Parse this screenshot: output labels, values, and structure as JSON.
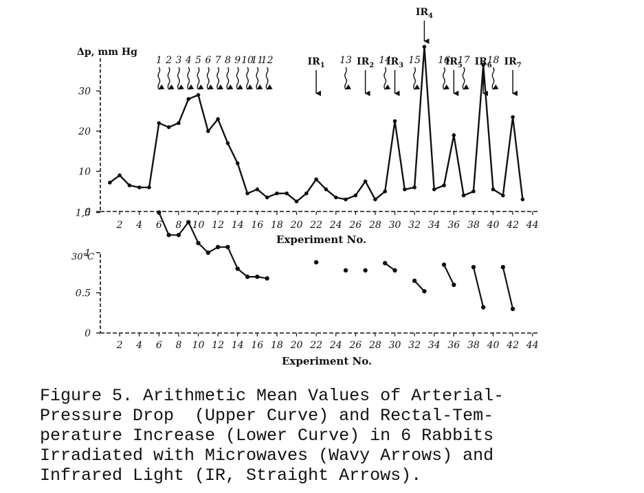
{
  "chart_data": [
    {
      "type": "line",
      "ylabel": "Δp, mm Hg",
      "xlabel": "Experiment No.",
      "xlim": [
        0,
        44
      ],
      "ylim": [
        0,
        35
      ],
      "x_ticks": [
        "2",
        "4",
        "6",
        "8",
        "10",
        "12",
        "14",
        "16",
        "18",
        "20",
        "22",
        "24",
        "26",
        "28",
        "30",
        "32",
        "34",
        "36",
        "38",
        "40",
        "42",
        "44"
      ],
      "y_ticks": [
        "0",
        "10",
        "20",
        "30"
      ],
      "series": [
        {
          "x": [
            1,
            2,
            3,
            4,
            5,
            6,
            7,
            8,
            9,
            10,
            11,
            12,
            13,
            14,
            15,
            16,
            17,
            18,
            19,
            20,
            21,
            22,
            23,
            24,
            25,
            26,
            27,
            28,
            29,
            30,
            31,
            32,
            33,
            34,
            35,
            36,
            37,
            38,
            39,
            40,
            41,
            42,
            43
          ],
          "values": [
            7.2,
            9,
            6.5,
            6,
            6,
            22,
            21,
            22,
            28,
            29,
            20,
            23,
            17,
            12,
            4.5,
            5.5,
            3.5,
            4.5,
            4.5,
            2.5,
            4.5,
            8,
            5.5,
            3.5,
            3,
            4,
            7.5,
            3,
            5,
            22.5,
            5.5,
            6,
            41,
            5.5,
            6.5,
            19,
            4,
            5,
            36.5,
            5.5,
            4,
            23.5,
            3
          ]
        }
      ],
      "annotations": {
        "microwave_labels": [
          "1",
          "2",
          "3",
          "4",
          "5",
          "6",
          "7",
          "8",
          "9",
          "10",
          "11",
          "12",
          "13",
          "14",
          "15",
          "16",
          "17",
          "18"
        ],
        "microwave_x": [
          6,
          7,
          8,
          9,
          10,
          11,
          12,
          13,
          14,
          15,
          16,
          17,
          25,
          29,
          32,
          35,
          37,
          40
        ],
        "ir_labels": [
          "IR",
          "IR",
          "IR",
          "IR",
          "IR",
          "IR",
          "IR"
        ],
        "ir_subscripts": [
          "1",
          "2",
          "3",
          "4",
          "5",
          "6",
          "7"
        ],
        "ir_x": [
          22,
          27,
          30,
          33,
          36,
          39,
          42
        ]
      }
    },
    {
      "type": "scatter",
      "ylabel": "°C",
      "xlabel": "Experiment No.",
      "xlim": [
        0,
        44
      ],
      "ylim": [
        0,
        1.75
      ],
      "x_ticks": [
        "2",
        "4",
        "6",
        "8",
        "10",
        "12",
        "14",
        "16",
        "18",
        "20",
        "22",
        "24",
        "26",
        "28",
        "30",
        "32",
        "34",
        "36",
        "38",
        "40",
        "42",
        "44"
      ],
      "y_ticks": [
        "0",
        "0.5",
        "1",
        "1,5"
      ],
      "y_top_label": "30°C",
      "segments": [
        {
          "x": [
            6,
            7,
            8,
            9,
            10,
            11,
            12,
            13,
            14,
            15,
            16,
            17
          ],
          "values": [
            1.5,
            1.22,
            1.22,
            1.38,
            1.12,
            1.0,
            1.07,
            1.07,
            0.8,
            0.7,
            0.7,
            0.68
          ]
        },
        {
          "x": [
            22
          ],
          "values": [
            0.88
          ]
        },
        {
          "x": [
            25
          ],
          "values": [
            0.78
          ]
        },
        {
          "x": [
            27
          ],
          "values": [
            0.78
          ]
        },
        {
          "x": [
            29,
            30
          ],
          "values": [
            0.87,
            0.78
          ]
        },
        {
          "x": [
            32,
            33
          ],
          "values": [
            0.65,
            0.52
          ]
        },
        {
          "x": [
            35,
            36
          ],
          "values": [
            0.85,
            0.6
          ]
        },
        {
          "x": [
            38,
            39
          ],
          "values": [
            0.82,
            0.32
          ]
        },
        {
          "x": [
            41,
            42
          ],
          "values": [
            0.82,
            0.3
          ]
        }
      ]
    }
  ],
  "caption": {
    "lines": [
      "Figure 5. Arithmetic Mean Values of Arterial-",
      "Pressure Drop  (Upper Curve) and Rectal-Tem-",
      "perature Increase (Lower Curve) in 6 Rabbits",
      "Irradiated with Microwaves (Wavy Arrows) and",
      "Infrared Light (IR, Straight Arrows)."
    ]
  }
}
